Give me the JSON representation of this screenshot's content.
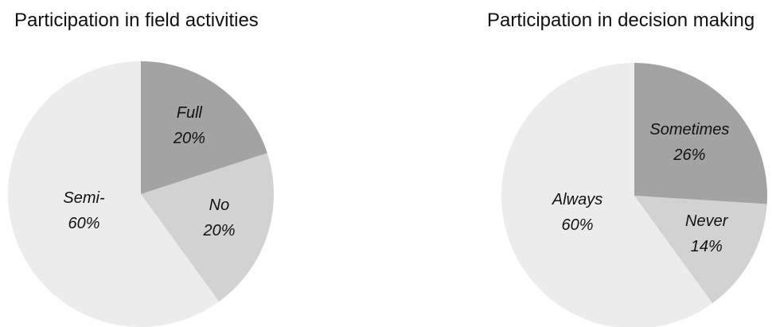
{
  "chart_data": [
    {
      "type": "pie",
      "title": "Participation in field activities",
      "slices": [
        {
          "label": "Full",
          "value": 20,
          "value_label": "20%",
          "color": "#a3a3a3"
        },
        {
          "label": "No",
          "value": 20,
          "value_label": "20%",
          "color": "#d2d2d2"
        },
        {
          "label": "Semi-",
          "value": 60,
          "value_label": "60%",
          "color": "#ececec"
        }
      ]
    },
    {
      "type": "pie",
      "title": "Participation in decision making",
      "slices": [
        {
          "label": "Sometimes",
          "value": 26,
          "value_label": "26%",
          "color": "#a3a3a3"
        },
        {
          "label": "Never",
          "value": 14,
          "value_label": "14%",
          "color": "#d2d2d2"
        },
        {
          "label": "Always",
          "value": 60,
          "value_label": "60%",
          "color": "#ececec"
        }
      ]
    }
  ]
}
